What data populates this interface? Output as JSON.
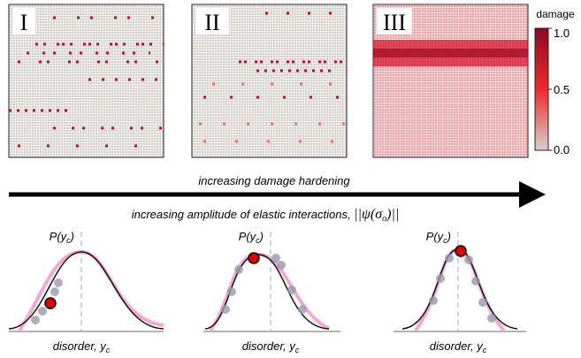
{
  "panels": [
    {
      "label": "I"
    },
    {
      "label": "II"
    },
    {
      "label": "III"
    }
  ],
  "colorbar": {
    "title": "damage",
    "ticks": [
      {
        "value": 1,
        "label": "1.0"
      },
      0.5,
      {
        "value": 0,
        "label": "0.0"
      }
    ],
    "range": [
      0,
      1
    ]
  },
  "arrow": {
    "label": "increasing damage hardening"
  },
  "subtitle": {
    "text": "increasing amplitude of elastic interactions, ",
    "math": "||ψ(σ",
    "math_sub": "o",
    "math_close": ")||"
  },
  "plots": [
    {
      "y_label": "P(y",
      "y_sub": "c",
      "y_close": ")",
      "x_label": "disorder, y",
      "x_sub": "c"
    },
    {
      "y_label": "P(y",
      "y_sub": "c",
      "y_close": ")",
      "x_label": "disorder, y",
      "x_sub": "c"
    },
    {
      "y_label": "P(y",
      "y_sub": "c",
      "y_close": ")",
      "x_label": "disorder, y",
      "x_sub": "c"
    }
  ]
}
